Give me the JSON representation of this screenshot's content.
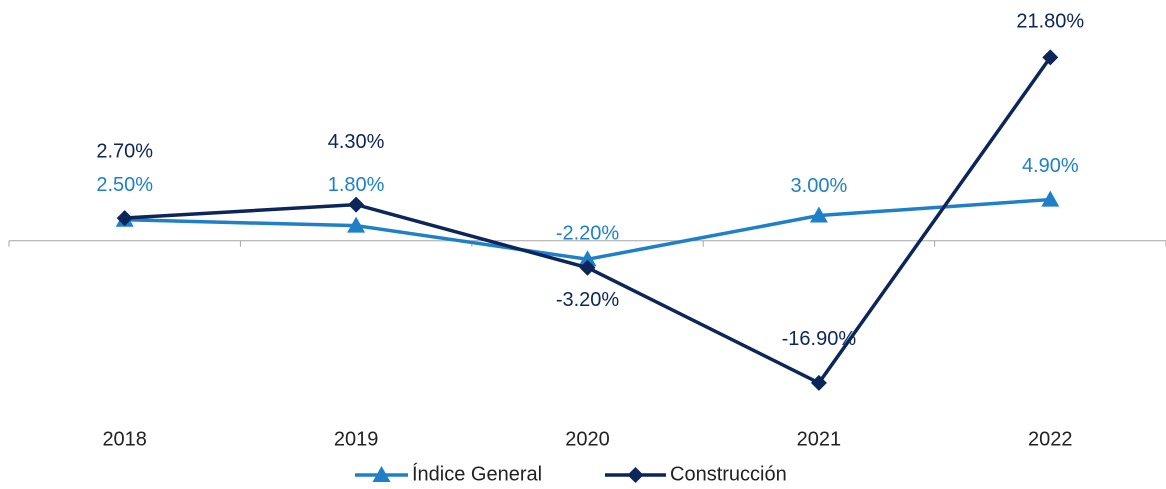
{
  "chart_data": {
    "type": "line",
    "categories": [
      "2018",
      "2019",
      "2020",
      "2021",
      "2022"
    ],
    "series": [
      {
        "name": "Índice General",
        "color": "#1f80c8",
        "marker": "triangle",
        "values": [
          2.5,
          1.8,
          -2.2,
          3.0,
          4.9
        ],
        "value_labels": [
          "2.50%",
          "1.80%",
          "-2.20%",
          "3.00%",
          "4.90%"
        ]
      },
      {
        "name": "Construcción",
        "color": "#0c2659",
        "marker": "diamond",
        "values": [
          2.7,
          4.3,
          -3.2,
          -16.9,
          21.8
        ],
        "value_labels": [
          "2.70%",
          "4.30%",
          "-3.20%",
          "-16.90%",
          "21.80%"
        ]
      }
    ],
    "ylim": [
      -20,
      25
    ],
    "legend": "bottom"
  }
}
